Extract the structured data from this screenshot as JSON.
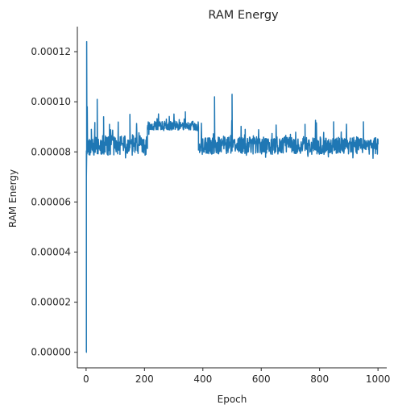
{
  "chart_data": {
    "type": "line",
    "title": "RAM Energy",
    "xlabel": "Epoch",
    "ylabel": "RAM Energy",
    "xlim": [
      -30,
      1030
    ],
    "ylim": [
      -6.2e-06,
      0.00013
    ],
    "xticks": [
      0,
      200,
      400,
      600,
      800,
      1000
    ],
    "xtick_labels": [
      "0",
      "200",
      "400",
      "600",
      "800",
      "1000"
    ],
    "yticks": [
      0,
      2e-05,
      4e-05,
      6e-05,
      8e-05,
      0.0001,
      0.00012
    ],
    "ytick_labels": [
      "0.00000",
      "0.00002",
      "0.00004",
      "0.00006",
      "0.00008",
      "0.00010",
      "0.00012"
    ],
    "grid": false,
    "series": [
      {
        "color": "#1f77b4",
        "segments": [
          {
            "x_start": 0,
            "x_end": 1,
            "mean": 0.0,
            "amp": 0,
            "seed": 1
          },
          {
            "x_start": 1,
            "x_end": 210,
            "mean": 8.25e-05,
            "amp": 4e-06,
            "seed": 11
          },
          {
            "x_start": 210,
            "x_end": 385,
            "mean": 9.05e-05,
            "amp": 1.8e-06,
            "seed": 23
          },
          {
            "x_start": 385,
            "x_end": 1000,
            "mean": 8.25e-05,
            "amp": 3.5e-06,
            "seed": 37
          }
        ],
        "points": [
          [
            0,
            0.0
          ],
          [
            1,
            7e-05
          ],
          [
            2,
            0.000124
          ],
          [
            4,
            9.8e-05
          ],
          [
            6,
            8e-05
          ],
          [
            12,
            8.4e-05
          ],
          [
            18,
            8.9e-05
          ],
          [
            25,
            8.1e-05
          ],
          [
            30,
            8.4e-05
          ],
          [
            38,
            0.000101
          ],
          [
            42,
            8.5e-05
          ],
          [
            60,
            9.4e-05
          ],
          [
            65,
            8.2e-05
          ],
          [
            80,
            9.1e-05
          ],
          [
            100,
            8.5e-05
          ],
          [
            120,
            8.6e-05
          ],
          [
            150,
            9.5e-05
          ],
          [
            175,
            8.2e-05
          ],
          [
            195,
            8.4e-05
          ],
          [
            205,
            7.9e-05
          ],
          [
            215,
            8.7e-05
          ],
          [
            225,
            9.1e-05
          ],
          [
            260,
            9.2e-05
          ],
          [
            300,
            9.1e-05
          ],
          [
            340,
            9.6e-05
          ],
          [
            360,
            9.1e-05
          ],
          [
            383,
            8.9e-05
          ],
          [
            392,
            8.1e-05
          ],
          [
            400,
            8.5e-05
          ],
          [
            440,
            0.000102
          ],
          [
            450,
            8.3e-05
          ],
          [
            500,
            0.000103
          ],
          [
            520,
            8.5e-05
          ],
          [
            545,
            8.9e-05
          ],
          [
            600,
            8.3e-05
          ],
          [
            700,
            8.7e-05
          ],
          [
            750,
            9.1e-05
          ],
          [
            800,
            8.2e-05
          ],
          [
            848,
            9.2e-05
          ],
          [
            880,
            8.4e-05
          ],
          [
            950,
            9.2e-05
          ],
          [
            990,
            8.3e-05
          ],
          [
            1000,
            8.3e-05
          ]
        ]
      }
    ]
  }
}
